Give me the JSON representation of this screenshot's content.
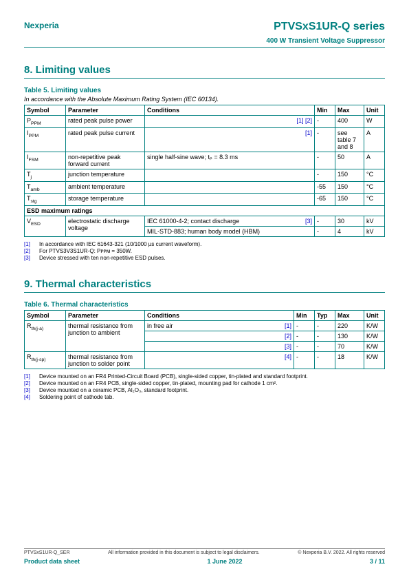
{
  "header": {
    "company": "Nexperia",
    "series_title": "PTVSxS1UR-Q series",
    "subtitle": "400 W Transient Voltage Suppressor"
  },
  "section8": {
    "heading": "8.  Limiting values",
    "table_caption": "Table 5. Limiting values",
    "table_subcaption": "In accordance with the Absolute Maximum Rating System (IEC 60134).",
    "headers": {
      "symbol": "Symbol",
      "parameter": "Parameter",
      "conditions": "Conditions",
      "min": "Min",
      "max": "Max",
      "unit": "Unit"
    },
    "rows": [
      {
        "symbol_html": "P<sub>PPM</sub>",
        "parameter": "rated peak pulse power",
        "conditions": "",
        "refs": "[1] [2]",
        "min": "-",
        "max": "400",
        "unit": "W"
      },
      {
        "symbol_html": "I<sub>PPM</sub>",
        "parameter": "rated peak pulse current",
        "conditions": "",
        "refs": "[1]",
        "min": "-",
        "max": "see table 7 and 8",
        "unit": "A"
      },
      {
        "symbol_html": "I<sub>FSM</sub>",
        "parameter": "non-repetitive peak forward current",
        "conditions": "single half-sine wave; tₚ = 8.3 ms",
        "refs": "",
        "min": "-",
        "max": "50",
        "unit": "A"
      },
      {
        "symbol_html": "T<sub>j</sub>",
        "parameter": "junction temperature",
        "conditions": "",
        "refs": "",
        "min": "-",
        "max": "150",
        "unit": "°C"
      },
      {
        "symbol_html": "T<sub>amb</sub>",
        "parameter": "ambient temperature",
        "conditions": "",
        "refs": "",
        "min": "-55",
        "max": "150",
        "unit": "°C"
      },
      {
        "symbol_html": "T<sub>stg</sub>",
        "parameter": "storage temperature",
        "conditions": "",
        "refs": "",
        "min": "-65",
        "max": "150",
        "unit": "°C"
      }
    ],
    "esd_heading": "ESD maximum ratings",
    "esd_rows": [
      {
        "symbol_html": "V<sub>ESD</sub>",
        "parameter": "electrostatic discharge voltage",
        "conditions": "IEC 61000-4-2; contact discharge",
        "refs": "[3]",
        "min": "-",
        "max": "30",
        "unit": "kV"
      },
      {
        "conditions": "MIL-STD-883; human body model (HBM)",
        "refs": "",
        "min": "-",
        "max": "4",
        "unit": "kV"
      }
    ],
    "footnotes": [
      {
        "n": "[1]",
        "t": "In accordance with IEC 61643-321 (10/1000 µs current waveform)."
      },
      {
        "n": "[2]",
        "t": "For PTVS3V3S1UR-Q: Pᴘᴘᴍ = 350W."
      },
      {
        "n": "[3]",
        "t": "Device stressed with ten non-repetitive ESD pulses."
      }
    ]
  },
  "section9": {
    "heading": "9.  Thermal characteristics",
    "table_caption": "Table 6. Thermal characteristics",
    "headers": {
      "symbol": "Symbol",
      "parameter": "Parameter",
      "conditions": "Conditions",
      "min": "Min",
      "typ": "Typ",
      "max": "Max",
      "unit": "Unit"
    },
    "rows": [
      {
        "symbol_html": "R<sub>th(j-a)</sub>",
        "parameter": "thermal resistance from junction to ambient",
        "conditions": "in free air",
        "refs": "[1]",
        "min": "-",
        "typ": "-",
        "max": "220",
        "unit": "K/W"
      },
      {
        "refs": "[2]",
        "min": "-",
        "typ": "-",
        "max": "130",
        "unit": "K/W"
      },
      {
        "refs": "[3]",
        "min": "-",
        "typ": "-",
        "max": "70",
        "unit": "K/W"
      },
      {
        "symbol_html": "R<sub>th(j-sp)</sub>",
        "parameter": "thermal resistance from junction to solder point",
        "conditions": "",
        "refs": "[4]",
        "min": "-",
        "typ": "-",
        "max": "18",
        "unit": "K/W"
      }
    ],
    "footnotes": [
      {
        "n": "[1]",
        "t": "Device mounted on an FR4 Printed-Circuit Board (PCB), single-sided copper, tin-plated and standard footprint."
      },
      {
        "n": "[2]",
        "t": "Device mounted on an FR4 PCB, single-sided copper, tin-plated, mounting pad for cathode 1 cm²."
      },
      {
        "n": "[3]",
        "t": "Device mounted on a ceramic PCB, Al₂O₃, standard footprint."
      },
      {
        "n": "[4]",
        "t": "Soldering point of cathode tab."
      }
    ]
  },
  "footer": {
    "doc_id": "PTVSxS1UR-Q_SER",
    "disclaimer": "All information provided in this document is subject to legal disclaimers.",
    "copyright": "© Nexperia B.V. 2022. All rights reserved",
    "doctype": "Product data sheet",
    "date": "1 June 2022",
    "page": "3 / 11"
  },
  "style": {
    "brand_color": "#008080",
    "link_color": "#0000cc",
    "border_color": "#008080",
    "background": "#ffffff"
  }
}
